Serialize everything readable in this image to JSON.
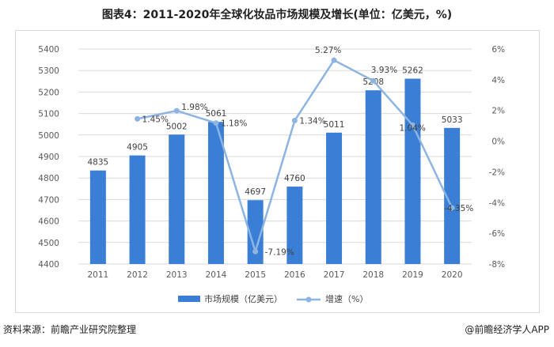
{
  "title": "图表4：2011-2020年全球化妆品市场规模及增长(单位：亿美元，%)",
  "source": "资料来源：前瞻产业研究院整理",
  "brand": "@前瞻经济学人APP",
  "colors": {
    "bar": "#3a7fd5",
    "line": "#8db4e2",
    "grid": "#d9d9d9",
    "axis_text": "#595959"
  },
  "chart_data": {
    "type": "bar",
    "categories": [
      "2011",
      "2012",
      "2013",
      "2014",
      "2015",
      "2016",
      "2017",
      "2018",
      "2019",
      "2020"
    ],
    "series": [
      {
        "name": "市场规模（亿美元）",
        "type": "bar",
        "axis": "left",
        "values": [
          4835,
          4905,
          5002,
          5061,
          4697,
          4760,
          5011,
          5208,
          5262,
          5033
        ],
        "labels": [
          "4835",
          "4905",
          "5002",
          "5061",
          "4697",
          "4760",
          "5011",
          "5208",
          "5262",
          "5033"
        ]
      },
      {
        "name": "增速（%）",
        "type": "line",
        "axis": "right",
        "values": [
          null,
          1.45,
          1.98,
          1.18,
          -7.19,
          1.34,
          5.27,
          3.93,
          1.04,
          -4.35
        ],
        "labels": [
          "",
          "1.45%",
          "1.98%",
          "1.18%",
          "-7.19%",
          "1.34%",
          "5.27%",
          "3.93%",
          "1.04%",
          "-4.35%"
        ]
      }
    ],
    "y_left": {
      "min": 4400,
      "max": 5400,
      "ticks": [
        "4400",
        "4500",
        "4600",
        "4700",
        "4800",
        "4900",
        "5000",
        "5100",
        "5200",
        "5300",
        "5400"
      ]
    },
    "y_right": {
      "min": -8,
      "max": 6,
      "ticks": [
        "-8%",
        "-6%",
        "-4%",
        "-2%",
        "0%",
        "2%",
        "4%",
        "6%"
      ]
    },
    "grid": true,
    "legend_position": "bottom"
  }
}
